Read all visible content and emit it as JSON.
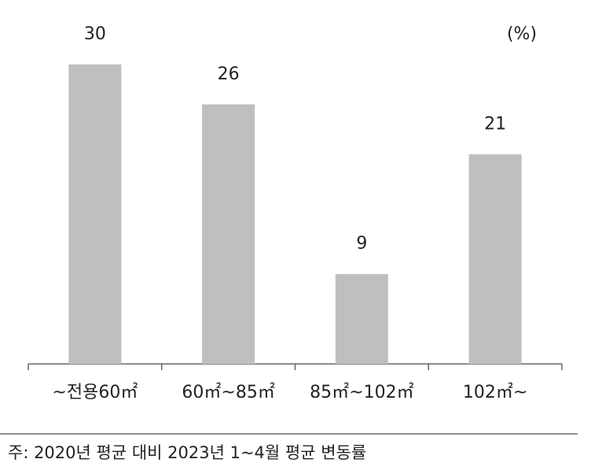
{
  "chart_data": {
    "type": "bar",
    "unit": "(%)",
    "categories": [
      "~전용60㎡",
      "60㎡~85㎡",
      "85㎡~102㎡",
      "102㎡~"
    ],
    "values": [
      30,
      26,
      9,
      21
    ],
    "color": "#bfbfbf"
  },
  "note": "주: 2020년 평균 대비 2023년 1~4월 평균 변동률"
}
